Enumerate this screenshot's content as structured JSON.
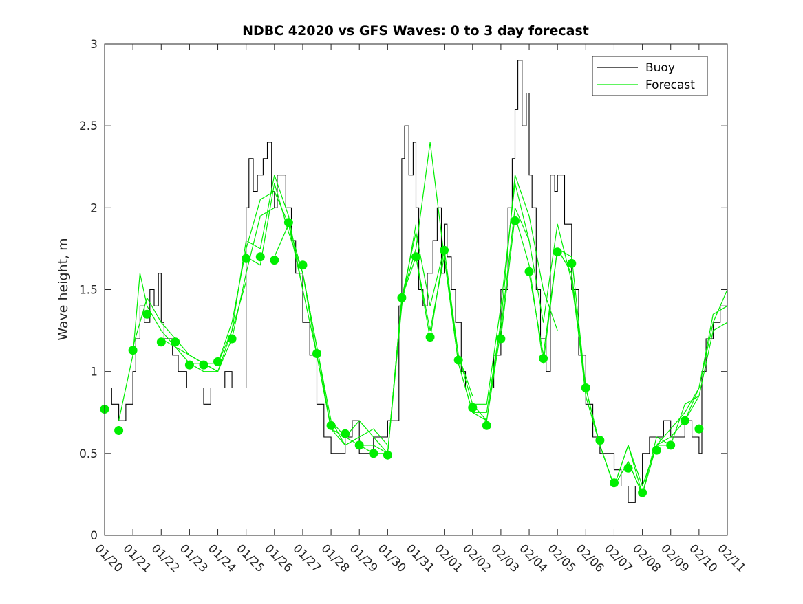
{
  "chart_data": {
    "type": "line",
    "title": "NDBC 42020 vs GFS Waves: 0 to 3 day forecast",
    "xlabel": "",
    "ylabel": "Wave height, m",
    "xlim": [
      0,
      22
    ],
    "ylim": [
      0,
      3
    ],
    "grid": false,
    "legend_position": "top-right",
    "x_tick_labels": [
      "01/20",
      "01/21",
      "01/22",
      "01/23",
      "01/24",
      "01/25",
      "01/26",
      "01/27",
      "01/28",
      "01/29",
      "01/30",
      "01/31",
      "02/01",
      "02/02",
      "02/03",
      "02/04",
      "02/05",
      "02/06",
      "02/07",
      "02/08",
      "02/09",
      "02/10",
      "02/11"
    ],
    "y_ticks": [
      0,
      0.5,
      1,
      1.5,
      2,
      2.5,
      3
    ],
    "y_tick_labels": [
      "0",
      "0.5",
      "1",
      "1.5",
      "2",
      "2.5",
      "3"
    ],
    "colors": {
      "buoy": "#000000",
      "forecast": "#00ee00",
      "axis": "#262626"
    },
    "series": [
      {
        "name": "Buoy",
        "kind": "observed",
        "x": [
          0,
          0.1,
          0.25,
          0.5,
          0.75,
          1,
          1.1,
          1.25,
          1.4,
          1.6,
          1.75,
          1.9,
          2,
          2.1,
          2.25,
          2.4,
          2.6,
          2.75,
          2.9,
          3,
          3.25,
          3.5,
          3.75,
          4,
          4.25,
          4.5,
          4.75,
          5,
          5.1,
          5.25,
          5.4,
          5.6,
          5.75,
          5.9,
          6,
          6.1,
          6.25,
          6.4,
          6.6,
          6.75,
          7,
          7.25,
          7.5,
          7.75,
          8,
          8.25,
          8.5,
          8.75,
          9,
          9.25,
          9.5,
          9.75,
          10,
          10.25,
          10.4,
          10.5,
          10.6,
          10.75,
          10.9,
          11,
          11.1,
          11.25,
          11.4,
          11.6,
          11.75,
          11.9,
          12,
          12.1,
          12.25,
          12.4,
          12.6,
          12.75,
          13,
          13.25,
          13.5,
          13.75,
          14,
          14.25,
          14.4,
          14.5,
          14.6,
          14.75,
          14.9,
          15,
          15.1,
          15.25,
          15.4,
          15.6,
          15.75,
          15.9,
          16,
          16.25,
          16.5,
          16.75,
          17,
          17.25,
          17.5,
          17.75,
          18,
          18.25,
          18.5,
          18.75,
          19,
          19.25,
          19.5,
          19.75,
          20,
          20.25,
          20.5,
          20.75,
          21,
          21.1,
          21.25,
          21.5,
          21.75,
          22
        ],
        "y": [
          0.9,
          0.9,
          0.8,
          0.7,
          0.8,
          1.0,
          1.2,
          1.4,
          1.3,
          1.5,
          1.4,
          1.6,
          1.3,
          1.2,
          1.2,
          1.1,
          1.0,
          1.0,
          0.9,
          0.9,
          0.9,
          0.8,
          0.9,
          0.9,
          1.0,
          0.9,
          0.9,
          2.0,
          2.3,
          2.1,
          2.2,
          2.3,
          2.4,
          2.1,
          2.0,
          2.2,
          2.2,
          2.0,
          1.8,
          1.6,
          1.3,
          1.1,
          0.8,
          0.6,
          0.5,
          0.5,
          0.6,
          0.7,
          0.5,
          0.5,
          0.6,
          0.6,
          0.7,
          0.7,
          1.4,
          2.3,
          2.5,
          2.2,
          2.4,
          2.0,
          1.5,
          1.4,
          1.6,
          1.8,
          2.0,
          1.6,
          1.9,
          1.7,
          1.5,
          1.3,
          1.0,
          0.9,
          0.9,
          0.9,
          0.9,
          1.1,
          1.5,
          2.0,
          2.3,
          2.6,
          2.9,
          2.5,
          2.7,
          2.2,
          2.0,
          1.5,
          1.2,
          1.0,
          2.2,
          2.1,
          2.2,
          1.9,
          1.5,
          1.1,
          0.8,
          0.6,
          0.5,
          0.5,
          0.4,
          0.3,
          0.2,
          0.3,
          0.5,
          0.6,
          0.6,
          0.7,
          0.6,
          0.6,
          0.7,
          0.6,
          0.5,
          1.0,
          1.2,
          1.3,
          1.4,
          1.5
        ]
      },
      {
        "name": "Forecast",
        "kind": "forecast-cycle",
        "x": [
          0.5,
          1,
          1.25,
          1.5,
          2,
          2.5,
          3,
          3.5,
          4
        ],
        "y": [
          0.7,
          1.1,
          1.6,
          1.4,
          1.25,
          1.15,
          1.05,
          1.0,
          1.0
        ]
      },
      {
        "name": "Forecast",
        "kind": "forecast-cycle",
        "x": [
          1,
          1.5,
          2,
          2.5,
          3,
          3.5,
          4,
          4.5,
          5
        ],
        "y": [
          1.15,
          1.45,
          1.3,
          1.2,
          1.1,
          1.05,
          1.0,
          1.25,
          1.55
        ]
      },
      {
        "name": "Forecast",
        "kind": "forecast-cycle",
        "x": [
          2,
          2.5,
          3,
          3.5,
          4,
          4.5,
          5,
          5.5,
          6
        ],
        "y": [
          1.2,
          1.15,
          1.1,
          1.05,
          1.0,
          1.2,
          1.6,
          1.95,
          2.0
        ]
      },
      {
        "name": "Forecast",
        "kind": "forecast-cycle",
        "x": [
          3,
          3.5,
          4,
          4.5,
          5,
          5.5,
          6,
          6.5,
          7
        ],
        "y": [
          1.05,
          1.05,
          1.05,
          1.3,
          1.75,
          2.05,
          2.1,
          1.9,
          1.5
        ]
      },
      {
        "name": "Forecast",
        "kind": "forecast-cycle",
        "x": [
          4,
          4.5,
          5,
          5.5,
          6,
          6.5,
          7,
          7.5,
          8
        ],
        "y": [
          1.05,
          1.25,
          1.8,
          1.75,
          2.2,
          1.95,
          1.5,
          1.1,
          0.65
        ]
      },
      {
        "name": "Forecast",
        "kind": "forecast-cycle",
        "x": [
          5,
          5.5,
          6,
          6.5,
          7,
          7.5,
          8,
          8.5,
          9
        ],
        "y": [
          1.7,
          1.65,
          2.15,
          1.85,
          1.6,
          1.15,
          0.7,
          0.55,
          0.6
        ]
      },
      {
        "name": "Forecast",
        "kind": "forecast-cycle",
        "x": [
          6,
          6.5,
          7,
          7.5,
          8,
          8.5,
          9,
          9.5,
          10
        ],
        "y": [
          1.7,
          1.9,
          1.6,
          1.1,
          0.65,
          0.55,
          0.6,
          0.65,
          0.55
        ]
      },
      {
        "name": "Forecast",
        "kind": "forecast-cycle",
        "x": [
          7,
          7.5,
          8,
          8.5,
          9,
          9.5,
          10,
          10.5,
          11
        ],
        "y": [
          1.6,
          1.15,
          0.65,
          0.6,
          0.7,
          0.6,
          0.5,
          1.4,
          1.9
        ]
      },
      {
        "name": "Forecast",
        "kind": "forecast-cycle",
        "x": [
          8,
          8.5,
          9,
          9.5,
          10,
          10.5,
          11,
          11.5,
          12
        ],
        "y": [
          0.7,
          0.6,
          0.55,
          0.5,
          0.5,
          1.45,
          1.85,
          1.4,
          1.75
        ]
      },
      {
        "name": "Forecast",
        "kind": "forecast-cycle",
        "x": [
          9,
          9.5,
          10,
          10.5,
          11,
          11.5,
          12,
          12.5,
          13
        ],
        "y": [
          0.55,
          0.55,
          0.5,
          1.45,
          1.75,
          2.4,
          1.7,
          1.1,
          0.85
        ]
      },
      {
        "name": "Forecast",
        "kind": "forecast-cycle",
        "x": [
          10,
          10.5,
          11,
          11.5,
          12,
          12.5,
          13,
          13.5,
          14
        ],
        "y": [
          0.5,
          1.45,
          1.7,
          1.25,
          1.7,
          1.05,
          0.75,
          0.7,
          1.3
        ]
      },
      {
        "name": "Forecast",
        "kind": "forecast-cycle",
        "x": [
          11,
          11.5,
          12,
          12.5,
          13,
          13.5,
          14,
          14.5,
          15
        ],
        "y": [
          1.7,
          1.2,
          1.75,
          1.1,
          0.8,
          0.8,
          1.4,
          2.15,
          1.8
        ]
      },
      {
        "name": "Forecast",
        "kind": "forecast-cycle",
        "x": [
          12,
          12.5,
          13,
          13.5,
          14,
          14.5,
          15,
          15.5,
          16
        ],
        "y": [
          1.7,
          1.05,
          0.75,
          0.75,
          1.3,
          2.2,
          1.95,
          1.5,
          1.25
        ]
      },
      {
        "name": "Forecast",
        "kind": "forecast-cycle",
        "x": [
          13,
          13.5,
          14,
          14.5,
          15,
          15.5,
          16,
          16.5,
          17
        ],
        "y": [
          0.8,
          0.7,
          1.25,
          2.0,
          1.8,
          1.3,
          1.9,
          1.55,
          0.9
        ]
      },
      {
        "name": "Forecast",
        "kind": "forecast-cycle",
        "x": [
          14,
          14.5,
          15,
          15.5,
          16,
          16.5,
          17,
          17.5,
          18
        ],
        "y": [
          1.2,
          1.95,
          1.65,
          1.05,
          1.75,
          1.7,
          0.9,
          0.55,
          0.3
        ]
      },
      {
        "name": "Forecast",
        "kind": "forecast-cycle",
        "x": [
          15,
          15.5,
          16,
          16.5,
          17,
          17.5,
          18,
          18.5,
          19
        ],
        "y": [
          1.6,
          1.1,
          1.75,
          1.6,
          0.85,
          0.55,
          0.3,
          0.55,
          0.25
        ]
      },
      {
        "name": "Forecast",
        "kind": "forecast-cycle",
        "x": [
          16,
          16.5,
          17,
          17.5,
          18,
          18.5,
          19,
          19.5,
          20
        ],
        "y": [
          1.75,
          1.6,
          0.9,
          0.55,
          0.3,
          0.45,
          0.25,
          0.6,
          0.55
        ]
      },
      {
        "name": "Forecast",
        "kind": "forecast-cycle",
        "x": [
          17,
          17.5,
          18,
          18.5,
          19,
          19.5,
          20,
          20.5,
          21
        ],
        "y": [
          0.9,
          0.55,
          0.3,
          0.55,
          0.3,
          0.55,
          0.55,
          0.8,
          0.85
        ]
      },
      {
        "name": "Forecast",
        "kind": "forecast-cycle",
        "x": [
          18,
          18.5,
          19,
          19.5,
          20,
          20.5,
          21,
          21.5,
          22
        ],
        "y": [
          0.3,
          0.45,
          0.25,
          0.55,
          0.6,
          0.7,
          0.9,
          1.3,
          1.5
        ]
      },
      {
        "name": "Forecast",
        "kind": "forecast-cycle",
        "x": [
          19,
          19.5,
          20,
          20.5,
          21,
          21.5,
          22
        ],
        "y": [
          0.3,
          0.55,
          0.65,
          0.75,
          0.9,
          1.35,
          1.4
        ]
      },
      {
        "name": "Forecast",
        "kind": "forecast-cycle",
        "x": [
          20,
          20.5,
          21,
          21.5,
          22
        ],
        "y": [
          0.6,
          0.7,
          0.85,
          1.25,
          1.3
        ]
      }
    ],
    "analysis_points": {
      "name": "Forecast",
      "x": [
        0,
        0.5,
        1,
        1.5,
        2,
        2.5,
        3,
        3.5,
        4,
        4.5,
        5,
        5.5,
        6,
        6.5,
        7,
        7.5,
        8,
        8.5,
        9,
        9.5,
        10,
        10.5,
        11,
        11.5,
        12,
        12.5,
        13,
        13.5,
        14,
        14.5,
        15,
        15.5,
        16,
        16.5,
        17,
        17.5,
        18,
        18.5,
        19,
        19.5,
        20,
        20.5,
        21
      ],
      "y": [
        0.77,
        0.64,
        1.13,
        1.35,
        1.18,
        1.18,
        1.04,
        1.04,
        1.06,
        1.2,
        1.69,
        1.7,
        1.68,
        1.91,
        1.65,
        1.11,
        0.67,
        0.62,
        0.55,
        0.5,
        0.49,
        1.45,
        1.7,
        1.21,
        1.74,
        1.07,
        0.78,
        0.67,
        1.2,
        1.92,
        1.61,
        1.08,
        1.73,
        1.66,
        0.9,
        0.58,
        0.32,
        0.41,
        0.26,
        0.52,
        0.55,
        0.7,
        0.65
      ]
    },
    "legend": [
      {
        "label": "Buoy",
        "color": "#000000"
      },
      {
        "label": "Forecast",
        "color": "#00ee00"
      }
    ]
  }
}
